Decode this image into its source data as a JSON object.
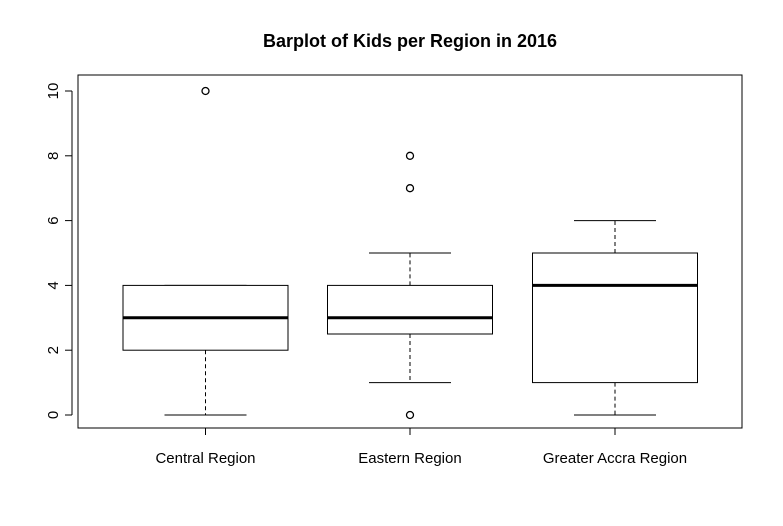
{
  "chart_data": {
    "type": "box",
    "title": "Barplot of Kids per Region in 2016",
    "xlabel": "",
    "ylabel": "",
    "ylim": [
      0,
      10
    ],
    "yticks": [
      0,
      2,
      4,
      6,
      8,
      10
    ],
    "grid": false,
    "legend": "none",
    "categories": [
      "Central Region",
      "Eastern Region",
      "Greater Accra Region"
    ],
    "boxes": [
      {
        "category": "Central Region",
        "min": 0,
        "q1": 2,
        "median": 3,
        "q3": 4,
        "max": 4,
        "outliers": [
          10
        ]
      },
      {
        "category": "Eastern Region",
        "min": 1,
        "q1": 2.5,
        "median": 3,
        "q3": 4,
        "max": 5,
        "outliers": [
          0,
          7,
          8
        ]
      },
      {
        "category": "Greater Accra Region",
        "min": 0,
        "q1": 1,
        "median": 4,
        "q3": 5,
        "max": 6,
        "outliers": []
      }
    ]
  }
}
